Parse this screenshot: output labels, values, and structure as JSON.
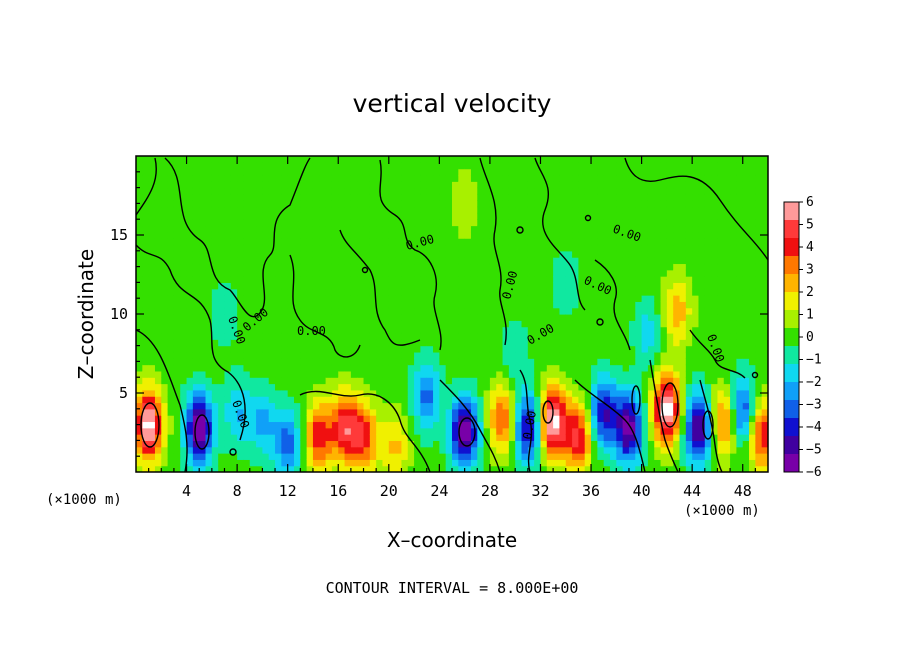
{
  "chart_data": {
    "type": "heatmap",
    "title": "vertical velocity",
    "xlabel": "X–coordinate",
    "ylabel": "Z–coordinate",
    "x_unit_label": "(×1000 m)",
    "y_unit_label": "(×1000 m)",
    "xlim": [
      0,
      50
    ],
    "ylim": [
      0,
      20
    ],
    "x_ticks": [
      4,
      8,
      12,
      16,
      20,
      24,
      28,
      32,
      36,
      40,
      44,
      48
    ],
    "y_ticks": [
      5,
      10,
      15
    ],
    "colorbar": {
      "min": -6,
      "max": 6,
      "labels": [
        "6",
        "5",
        "4",
        "3",
        "2",
        "1",
        "0",
        "−1",
        "−2",
        "−3",
        "−4",
        "−5",
        "−6"
      ],
      "colors": [
        "#ff9a9a",
        "#ff3a3a",
        "#f01010",
        "#ff7800",
        "#ffb400",
        "#f0f000",
        "#a8f000",
        "#34e000",
        "#10e8a0",
        "#10d8f0",
        "#10a0f8",
        "#1060e8",
        "#1010d0",
        "#4000a0",
        "#7800a8"
      ]
    },
    "contour_interval_text": "CONTOUR INTERVAL = 8.000E+00",
    "contour_labels": [
      "0.00",
      "0.00",
      "0.00",
      "0.00",
      "0.00",
      "0.00",
      "0.00",
      "0.00",
      "0.00",
      "0.00",
      "0.00"
    ],
    "features": [
      {
        "x": 1.0,
        "z": 3.0,
        "w": 6.5
      },
      {
        "x": 5.0,
        "z": 2.8,
        "w": -6.0
      },
      {
        "x": 8.0,
        "z": 3.8,
        "w": -2.0
      },
      {
        "x": 10.0,
        "z": 3.2,
        "w": -2.2
      },
      {
        "x": 12.0,
        "z": 1.8,
        "w": -3.2
      },
      {
        "x": 14.5,
        "z": 2.3,
        "w": 4.2
      },
      {
        "x": 16.5,
        "z": 2.9,
        "w": 4.4
      },
      {
        "x": 18.0,
        "z": 2.2,
        "w": 4.0
      },
      {
        "x": 20.5,
        "z": 1.6,
        "w": 2.2
      },
      {
        "x": 23.0,
        "z": 4.8,
        "w": -3.0
      },
      {
        "x": 26.0,
        "z": 2.6,
        "w": -6.0
      },
      {
        "x": 29.0,
        "z": 3.4,
        "w": 3.6
      },
      {
        "x": 31.0,
        "z": 2.8,
        "w": -4.8
      },
      {
        "x": 33.0,
        "z": 3.2,
        "w": 6.3
      },
      {
        "x": 35.0,
        "z": 2.2,
        "w": 4.5
      },
      {
        "x": 37.0,
        "z": 3.8,
        "w": -4.4
      },
      {
        "x": 39.0,
        "z": 2.8,
        "w": -5.6
      },
      {
        "x": 42.0,
        "z": 4.0,
        "w": 6.5
      },
      {
        "x": 42.8,
        "z": 10.2,
        "w": 2.6
      },
      {
        "x": 44.5,
        "z": 2.8,
        "w": -5.6
      },
      {
        "x": 46.5,
        "z": 3.2,
        "w": 3.6
      },
      {
        "x": 48.0,
        "z": 3.8,
        "w": -4.0
      },
      {
        "x": 49.5,
        "z": 2.4,
        "w": 4.5
      },
      {
        "x": 40.5,
        "z": 8.8,
        "w": -1.6
      },
      {
        "x": 30.0,
        "z": 7.5,
        "w": -1.2
      },
      {
        "x": 34.0,
        "z": 12.0,
        "w": -1.0
      },
      {
        "x": 7.0,
        "z": 10.0,
        "w": -1.0
      },
      {
        "x": 26.0,
        "z": 17.0,
        "w": 1.0
      }
    ]
  }
}
